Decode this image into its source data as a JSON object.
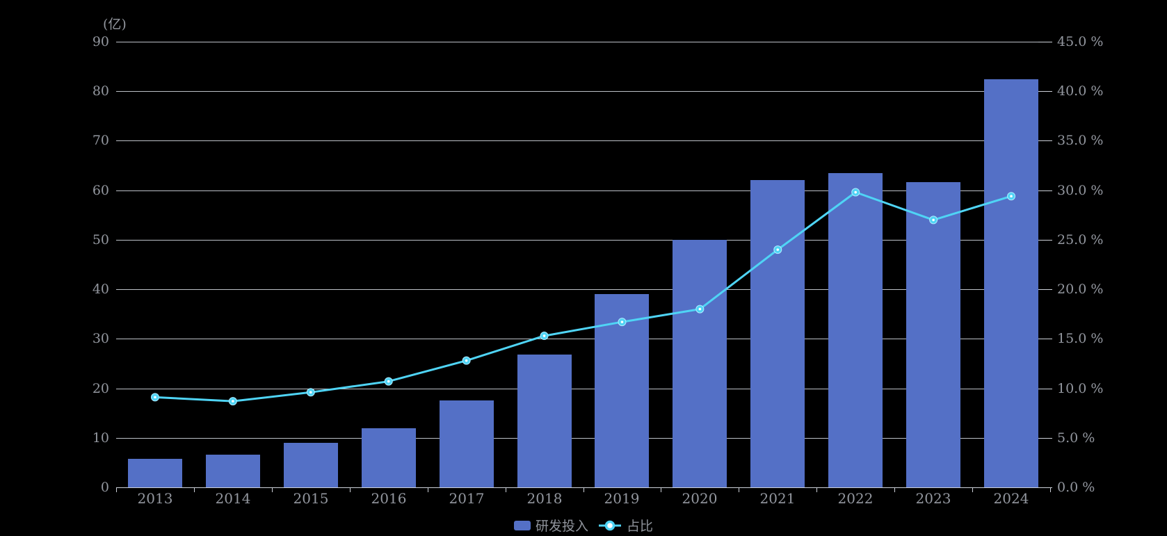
{
  "chart_data": {
    "type": "bar",
    "title": "",
    "categories": [
      "2013",
      "2014",
      "2015",
      "2016",
      "2017",
      "2018",
      "2019",
      "2020",
      "2021",
      "2022",
      "2023",
      "2024"
    ],
    "series": [
      {
        "name": "研发投入",
        "type": "bar",
        "axis": "left",
        "values": [
          5.7,
          6.6,
          9.0,
          12.0,
          17.6,
          26.8,
          39.0,
          50.0,
          62.0,
          63.5,
          61.6,
          82.4
        ]
      },
      {
        "name": "占比",
        "type": "line",
        "axis": "right",
        "values": [
          9.1,
          8.7,
          9.6,
          10.7,
          12.8,
          15.3,
          16.7,
          18.0,
          24.0,
          29.8,
          27.0,
          29.4
        ]
      }
    ],
    "left_axis": {
      "label": "(亿)",
      "min": 0,
      "max": 90,
      "step": 10,
      "ticks": [
        "0",
        "10",
        "20",
        "30",
        "40",
        "50",
        "60",
        "70",
        "80",
        "90"
      ]
    },
    "right_axis": {
      "min": 0,
      "max": 45,
      "step": 5,
      "unit": "%",
      "ticks": [
        "0.0 %",
        "5.0 %",
        "10.0 %",
        "15.0 %",
        "20.0 %",
        "25.0 %",
        "30.0 %",
        "35.0 %",
        "40.0 %",
        "45.0 %"
      ]
    },
    "legend_position": "bottom-center",
    "grid": true,
    "colors": {
      "background": "#000000",
      "bar": "#5470C6",
      "line": "#4FD4F5",
      "marker_ring": "#AEEBFF",
      "marker_core": "#FFFFFF",
      "gridline": "#CDD1D9",
      "axis_text": "#93979F",
      "legend_text": "#8F939B"
    }
  }
}
